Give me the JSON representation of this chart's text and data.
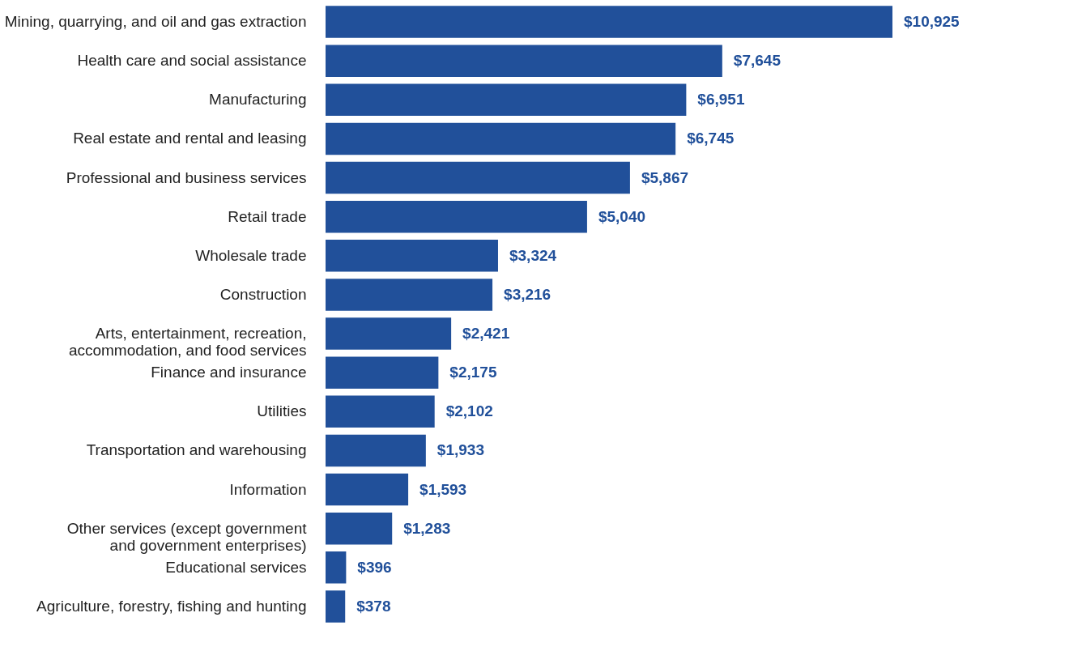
{
  "chart_data": {
    "type": "bar",
    "orientation": "horizontal",
    "color": "#21509a",
    "categories": [
      "Mining, quarrying, and oil and gas extraction",
      "Health care and social assistance",
      "Manufacturing",
      "Real estate and rental and leasing",
      "Professional and business services",
      "Retail trade",
      "Wholesale trade",
      "Construction",
      "Arts, entertainment, recreation, accommodation, and food services",
      "Finance and insurance",
      "Utilities",
      "Transportation and warehousing",
      "Information",
      "Other services (except government and government enterprises)",
      "Educational services",
      "Agriculture, forestry, fishing and hunting"
    ],
    "values": [
      10925,
      7645,
      6951,
      6745,
      5867,
      5040,
      3324,
      3216,
      2421,
      2175,
      2102,
      1933,
      1593,
      1283,
      396,
      378
    ],
    "value_labels": [
      "$10,925",
      "$7,645",
      "$6,951",
      "$6,745",
      "$5,867",
      "$5,040",
      "$3,324",
      "$3,216",
      "$2,421",
      "$2,175",
      "$2,102",
      "$1,933",
      "$1,593",
      "$1,283",
      "$396",
      "$378"
    ],
    "grid": false
  }
}
